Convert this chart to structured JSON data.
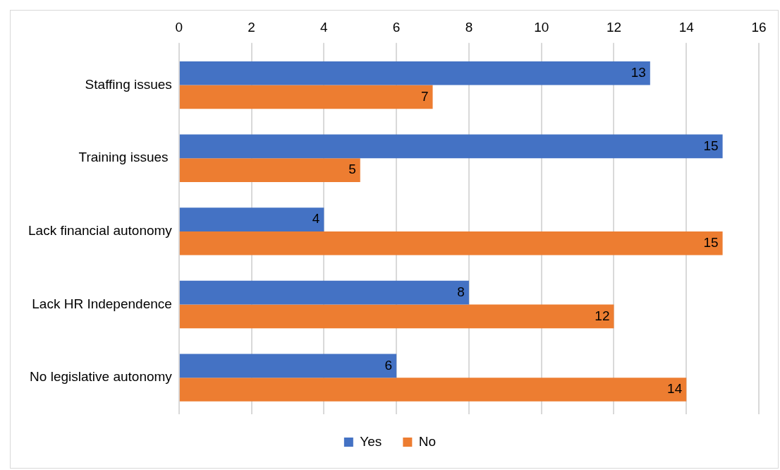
{
  "chart_data": {
    "type": "bar",
    "orientation": "horizontal",
    "categories": [
      "Staffing issues",
      "Training issues ",
      "Lack financial autonomy",
      "Lack HR Independence",
      "No legislative autonomy"
    ],
    "series": [
      {
        "name": "Yes",
        "color": "#4472c4",
        "values": [
          13,
          15,
          4,
          8,
          6
        ]
      },
      {
        "name": "No",
        "color": "#ed7d31",
        "values": [
          7,
          5,
          15,
          12,
          14
        ]
      }
    ],
    "xlim": [
      0,
      16
    ],
    "xticks": [
      0,
      2,
      4,
      6,
      8,
      10,
      12,
      14,
      16
    ],
    "grid": "x",
    "legend": "bottom",
    "data_labels": true
  }
}
